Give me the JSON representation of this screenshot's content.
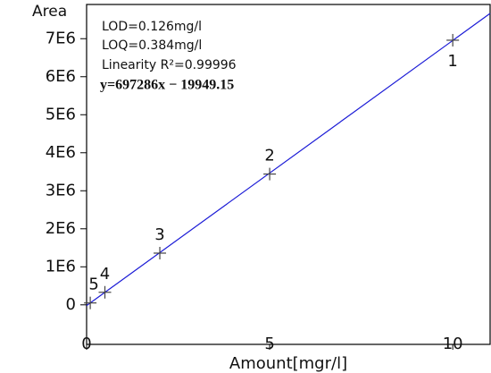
{
  "chart_data": {
    "type": "scatter",
    "y_label": "Area",
    "x_label": "Amount[mgr/l]",
    "annotations": [
      "LOD=0.126mg/l",
      "LOQ=0.384mg/l",
      "Linearity R²=0.99996",
      "y=697286x − 19949.15"
    ],
    "x": [
      10,
      5,
      2,
      0.5,
      0.1
    ],
    "values": [
      6960000,
      3440000,
      1360000,
      330000,
      50000
    ],
    "point_labels": [
      "1",
      "2",
      "3",
      "4",
      "5"
    ],
    "marker_color": "#444444",
    "fit_line": {
      "slope": 697286,
      "intercept": -19949.15,
      "color": "#1a1ad6"
    },
    "xlim": [
      0,
      11.02
    ],
    "ylim": [
      -1040000,
      7900000
    ],
    "xticks": [
      0,
      5,
      10
    ],
    "yticks": [
      0,
      {
        "value": 1000000,
        "label": "1E6"
      },
      {
        "value": 2000000,
        "label": "2E6"
      },
      {
        "value": 3000000,
        "label": "3E6"
      },
      {
        "value": 4000000,
        "label": "4E6"
      },
      {
        "value": 5000000,
        "label": "5E6"
      },
      {
        "value": 6000000,
        "label": "6E6"
      },
      {
        "value": 7000000,
        "label": "7E6"
      }
    ],
    "grid": false
  }
}
